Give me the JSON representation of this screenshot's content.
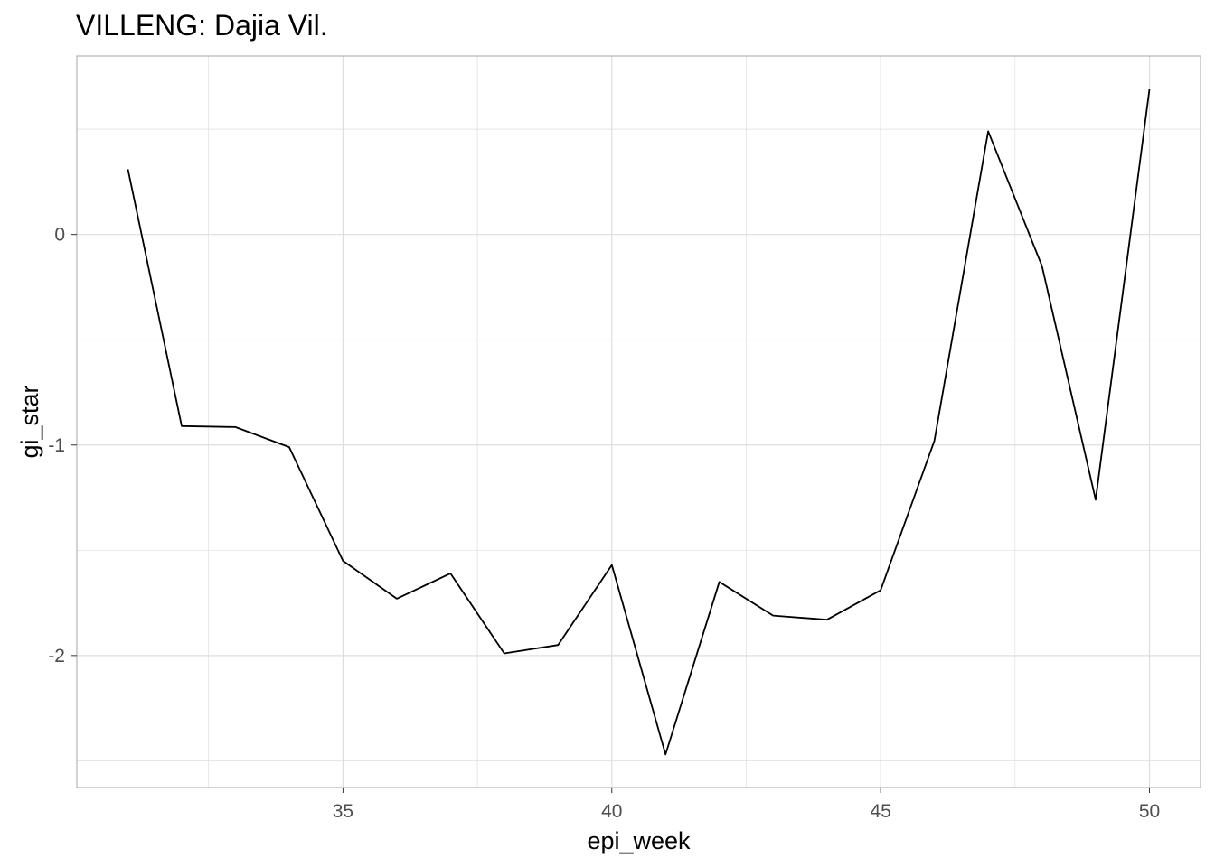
{
  "chart_data": {
    "type": "line",
    "title": "VILLENG: Dajia Vil.",
    "xlabel": "epi_week",
    "ylabel": "gi_star",
    "x": [
      31,
      32,
      33,
      34,
      35,
      36,
      37,
      38,
      39,
      40,
      41,
      42,
      43,
      44,
      45,
      46,
      47,
      48,
      49,
      50
    ],
    "series": [
      {
        "values": [
          0.31,
          -0.91,
          -0.915,
          -1.01,
          -1.55,
          -1.73,
          -1.61,
          -1.99,
          -1.95,
          -1.57,
          -2.47,
          -1.65,
          -1.81,
          -1.83,
          -1.69,
          -0.98,
          0.49,
          -0.15,
          -1.26,
          0.69
        ]
      }
    ],
    "xticks": [
      35,
      40,
      45,
      50
    ],
    "xtick_labels": [
      "35",
      "40",
      "45",
      "50"
    ],
    "yticks": [
      0,
      -1,
      -2
    ],
    "ytick_labels": [
      "0",
      "-1",
      "-2"
    ],
    "xlim": [
      30.05,
      50.95
    ],
    "ylim": [
      -2.627,
      0.848
    ],
    "grid": true,
    "line_color": "#000000",
    "grid_color": "#dedede",
    "border_color": "#b3b3b3"
  }
}
